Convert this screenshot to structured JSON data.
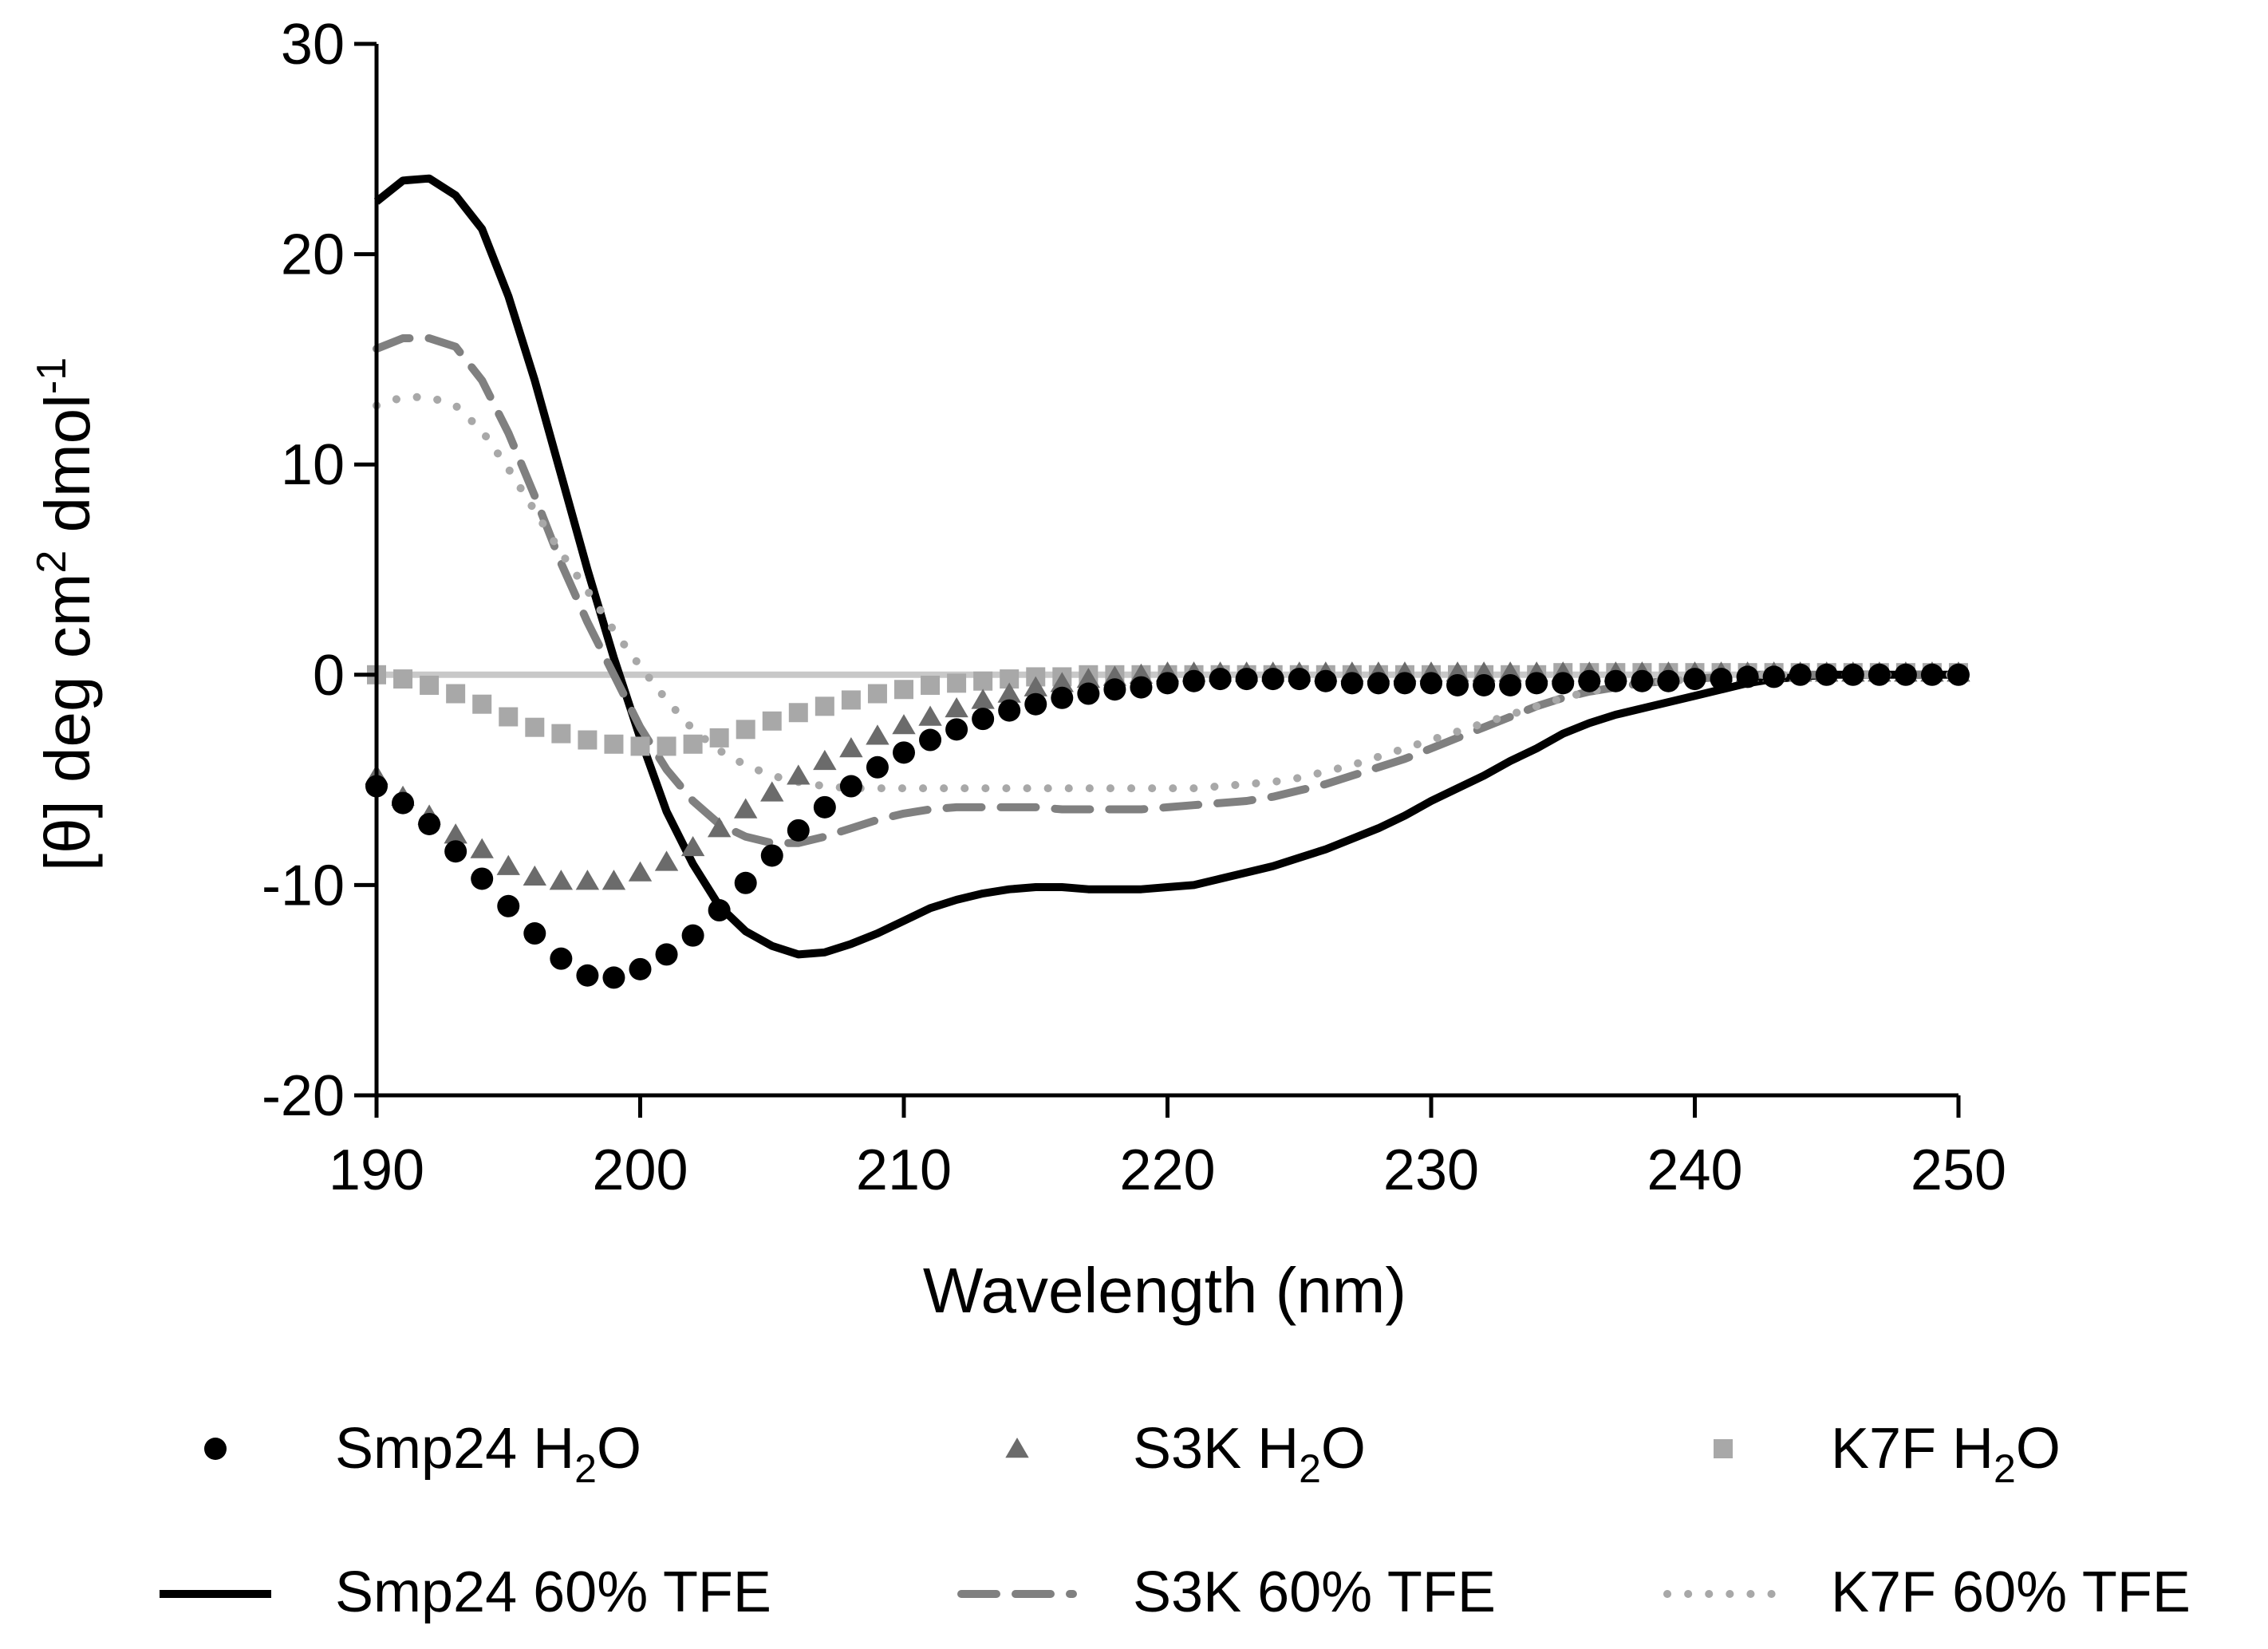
{
  "chart_data": {
    "type": "line",
    "title": "",
    "xlabel": "Wavelength (nm)",
    "ylabel": {
      "prefix": "[θ] deg cm",
      "sup1": "2",
      "middle": " dmol",
      "sup2": "-1"
    },
    "xlim": [
      190,
      250
    ],
    "ylim": [
      -20,
      30
    ],
    "xticks": [
      190,
      200,
      210,
      220,
      230,
      240,
      250
    ],
    "yticks": [
      30,
      20,
      10,
      0,
      -10,
      -20
    ],
    "xtick_labels": [
      "190",
      "200",
      "210",
      "220",
      "230",
      "240",
      "250"
    ],
    "ytick_labels": [
      "30",
      "20",
      "10",
      "0",
      "-10",
      "-20"
    ],
    "baseline": {
      "y": 0,
      "color": "#c8c8c8"
    },
    "legend_position": "bottom",
    "series": [
      {
        "name": "Smp24 H2O",
        "label_main": "Smp24 H",
        "label_sub": "2",
        "label_end": "O",
        "style": "circle-markers",
        "color": "#000000",
        "x": [
          190,
          191,
          192,
          193,
          194,
          195,
          196,
          197,
          198,
          199,
          200,
          201,
          202,
          203,
          204,
          205,
          206,
          207,
          208,
          209,
          210,
          211,
          212,
          213,
          214,
          215,
          216,
          217,
          218,
          219,
          220,
          221,
          222,
          223,
          224,
          225,
          226,
          227,
          228,
          229,
          230,
          231,
          232,
          233,
          234,
          235,
          236,
          237,
          238,
          239,
          240,
          241,
          242,
          243,
          244,
          245,
          246,
          247,
          248,
          249,
          250
        ],
        "y": [
          -5.3,
          -6.1,
          -7.1,
          -8.4,
          -9.7,
          -11.0,
          -12.3,
          -13.5,
          -14.3,
          -14.4,
          -14.0,
          -13.3,
          -12.4,
          -11.2,
          -9.9,
          -8.6,
          -7.4,
          -6.3,
          -5.3,
          -4.4,
          -3.7,
          -3.1,
          -2.6,
          -2.1,
          -1.7,
          -1.4,
          -1.1,
          -0.9,
          -0.7,
          -0.6,
          -0.4,
          -0.3,
          -0.2,
          -0.2,
          -0.2,
          -0.2,
          -0.3,
          -0.4,
          -0.4,
          -0.4,
          -0.4,
          -0.5,
          -0.5,
          -0.5,
          -0.4,
          -0.4,
          -0.3,
          -0.3,
          -0.3,
          -0.3,
          -0.2,
          -0.2,
          -0.1,
          -0.1,
          0.0,
          0.0,
          0.0,
          0.0,
          0.0,
          0.0,
          0.0
        ]
      },
      {
        "name": "S3K H2O",
        "label_main": "S3K H",
        "label_sub": "2",
        "label_end": "O",
        "style": "triangle-markers",
        "color": "#6b6b6b",
        "x": [
          190,
          191,
          192,
          193,
          194,
          195,
          196,
          197,
          198,
          199,
          200,
          201,
          202,
          203,
          204,
          205,
          206,
          207,
          208,
          209,
          210,
          211,
          212,
          213,
          214,
          215,
          216,
          217,
          218,
          219,
          220,
          221,
          222,
          223,
          224,
          225,
          226,
          227,
          228,
          229,
          230,
          231,
          232,
          233,
          234,
          235,
          236,
          237,
          238,
          239,
          240,
          241,
          242,
          243,
          244,
          245,
          246,
          247,
          248,
          249,
          250
        ],
        "y": [
          -4.8,
          -5.8,
          -6.7,
          -7.6,
          -8.3,
          -9.1,
          -9.6,
          -9.8,
          -9.8,
          -9.8,
          -9.4,
          -8.9,
          -8.2,
          -7.3,
          -6.4,
          -5.6,
          -4.8,
          -4.1,
          -3.5,
          -2.9,
          -2.4,
          -2.0,
          -1.6,
          -1.2,
          -0.9,
          -0.6,
          -0.4,
          -0.2,
          -0.1,
          0.0,
          0.1,
          0.1,
          0.1,
          0.1,
          0.1,
          0.1,
          0.1,
          0.1,
          0.1,
          0.1,
          0.1,
          0.1,
          0.1,
          0.1,
          0.1,
          0.1,
          0.1,
          0.1,
          0.1,
          0.1,
          0.1,
          0.1,
          0.1,
          0.1,
          0.1,
          0.1,
          0.1,
          0.1,
          0.1,
          0.1,
          0.1
        ]
      },
      {
        "name": "K7F H2O",
        "label_main": "K7F H",
        "label_sub": "2",
        "label_end": "O",
        "style": "square-markers",
        "color": "#a8a8a8",
        "x": [
          190,
          191,
          192,
          193,
          194,
          195,
          196,
          197,
          198,
          199,
          200,
          201,
          202,
          203,
          204,
          205,
          206,
          207,
          208,
          209,
          210,
          211,
          212,
          213,
          214,
          215,
          216,
          217,
          218,
          219,
          220,
          221,
          222,
          223,
          224,
          225,
          226,
          227,
          228,
          229,
          230,
          231,
          232,
          233,
          234,
          235,
          236,
          237,
          238,
          239,
          240,
          241,
          242,
          243,
          244,
          245,
          246,
          247,
          248,
          249,
          250
        ],
        "y": [
          0.0,
          -0.2,
          -0.5,
          -0.9,
          -1.4,
          -2.0,
          -2.5,
          -2.8,
          -3.1,
          -3.3,
          -3.4,
          -3.4,
          -3.3,
          -3.0,
          -2.6,
          -2.2,
          -1.8,
          -1.5,
          -1.2,
          -0.9,
          -0.7,
          -0.5,
          -0.4,
          -0.3,
          -0.2,
          -0.1,
          -0.1,
          0.0,
          0.0,
          0.0,
          0.0,
          0.0,
          0.0,
          0.0,
          0.0,
          0.0,
          0.0,
          0.0,
          0.0,
          0.0,
          0.0,
          0.0,
          0.0,
          0.0,
          0.0,
          0.1,
          0.1,
          0.1,
          0.1,
          0.1,
          0.1,
          0.1,
          0.1,
          0.1,
          0.1,
          0.1,
          0.1,
          0.1,
          0.1,
          0.1,
          0.1
        ]
      },
      {
        "name": "Smp24 60% TFE",
        "label_main": "Smp24 60% TFE",
        "label_sub": "",
        "label_end": "",
        "style": "solid",
        "color": "#000000",
        "x": [
          190,
          191,
          192,
          193,
          194,
          195,
          196,
          197,
          198,
          199,
          200,
          201,
          202,
          203,
          204,
          205,
          206,
          207,
          208,
          209,
          210,
          211,
          212,
          213,
          214,
          215,
          216,
          217,
          218,
          219,
          220,
          221,
          222,
          223,
          224,
          225,
          226,
          227,
          228,
          229,
          230,
          231,
          232,
          233,
          234,
          235,
          236,
          237,
          238,
          239,
          240,
          241,
          242,
          243,
          244,
          245,
          246,
          247,
          248,
          249,
          250
        ],
        "y": [
          22.5,
          23.5,
          23.6,
          22.8,
          21.2,
          18.0,
          14.0,
          9.5,
          5.0,
          0.8,
          -3.0,
          -6.5,
          -9.0,
          -11.0,
          -12.2,
          -12.9,
          -13.3,
          -13.2,
          -12.8,
          -12.3,
          -11.7,
          -11.1,
          -10.7,
          -10.4,
          -10.2,
          -10.1,
          -10.1,
          -10.2,
          -10.2,
          -10.2,
          -10.1,
          -10.0,
          -9.7,
          -9.4,
          -9.1,
          -8.7,
          -8.3,
          -7.8,
          -7.3,
          -6.7,
          -6.0,
          -5.4,
          -4.8,
          -4.1,
          -3.5,
          -2.8,
          -2.3,
          -1.9,
          -1.6,
          -1.3,
          -1.0,
          -0.7,
          -0.4,
          -0.2,
          -0.1,
          0.0,
          0.0,
          0.0,
          0.0,
          0.0,
          0.0
        ]
      },
      {
        "name": "S3K 60% TFE",
        "label_main": "S3K 60% TFE",
        "label_sub": "",
        "label_end": "",
        "style": "dashed",
        "color": "#808080",
        "x": [
          190,
          191,
          192,
          193,
          194,
          195,
          196,
          197,
          198,
          199,
          200,
          201,
          202,
          203,
          204,
          205,
          206,
          207,
          208,
          209,
          210,
          211,
          212,
          213,
          214,
          215,
          216,
          217,
          218,
          219,
          220,
          221,
          222,
          223,
          224,
          225,
          226,
          227,
          228,
          229,
          230,
          231,
          232,
          233,
          234,
          235,
          236,
          237,
          238,
          239,
          240,
          241,
          242,
          243,
          244,
          245,
          246,
          247,
          248,
          249,
          250
        ],
        "y": [
          15.5,
          16.0,
          16.0,
          15.6,
          14.0,
          11.5,
          8.5,
          5.3,
          2.5,
          0.0,
          -2.5,
          -4.5,
          -6.0,
          -7.1,
          -7.7,
          -8.0,
          -8.0,
          -7.7,
          -7.3,
          -6.9,
          -6.6,
          -6.4,
          -6.3,
          -6.3,
          -6.3,
          -6.3,
          -6.4,
          -6.4,
          -6.4,
          -6.4,
          -6.3,
          -6.2,
          -6.1,
          -6.0,
          -5.8,
          -5.5,
          -5.2,
          -4.8,
          -4.4,
          -4.0,
          -3.5,
          -3.0,
          -2.5,
          -2.0,
          -1.5,
          -1.1,
          -0.8,
          -0.6,
          -0.4,
          -0.3,
          -0.2,
          -0.1,
          0.0,
          0.0,
          0.0,
          0.0,
          0.0,
          0.0,
          0.0,
          0.0,
          0.0
        ]
      },
      {
        "name": "K7F 60% TFE",
        "label_main": "K7F 60% TFE",
        "label_sub": "",
        "label_end": "",
        "style": "dotted",
        "color": "#a8a8a8",
        "x": [
          190,
          191,
          192,
          193,
          194,
          195,
          196,
          197,
          198,
          199,
          200,
          201,
          202,
          203,
          204,
          205,
          206,
          207,
          208,
          209,
          210,
          211,
          212,
          213,
          214,
          215,
          216,
          217,
          218,
          219,
          220,
          221,
          222,
          223,
          224,
          225,
          226,
          227,
          228,
          229,
          230,
          231,
          232,
          233,
          234,
          235,
          236,
          237,
          238,
          239,
          240,
          241,
          242,
          243,
          244,
          245,
          246,
          247,
          248,
          249,
          250
        ],
        "y": [
          12.8,
          13.2,
          13.2,
          12.8,
          11.6,
          9.8,
          7.8,
          5.8,
          4.0,
          2.1,
          0.4,
          -1.2,
          -2.6,
          -3.6,
          -4.3,
          -4.8,
          -5.1,
          -5.3,
          -5.4,
          -5.4,
          -5.4,
          -5.4,
          -5.4,
          -5.4,
          -5.4,
          -5.4,
          -5.4,
          -5.4,
          -5.4,
          -5.4,
          -5.4,
          -5.4,
          -5.3,
          -5.2,
          -5.1,
          -4.9,
          -4.6,
          -4.3,
          -3.9,
          -3.5,
          -3.1,
          -2.7,
          -2.3,
          -1.9,
          -1.5,
          -1.1,
          -0.8,
          -0.6,
          -0.4,
          -0.3,
          -0.2,
          -0.1,
          0.0,
          0.0,
          0.0,
          0.0,
          0.0,
          0.0,
          0.0,
          0.0,
          0.0
        ]
      }
    ]
  }
}
